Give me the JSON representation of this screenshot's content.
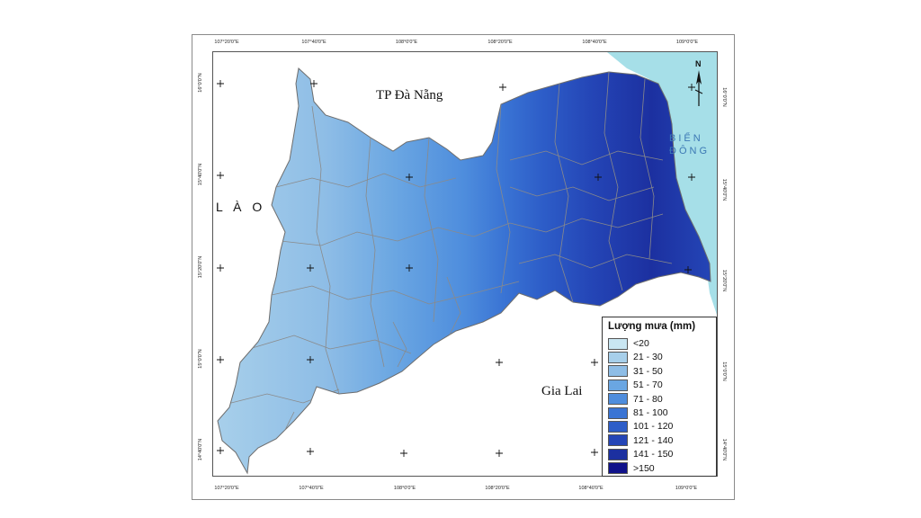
{
  "map": {
    "top_ticks": [
      "107°20'0\"E",
      "107°40'0\"E",
      "108°0'0\"E",
      "108°20'0\"E",
      "108°40'0\"E",
      "109°0'0\"E"
    ],
    "bottom_ticks": [
      "107°20'0\"E",
      "107°40'0\"E",
      "108°0'0\"E",
      "108°20'0\"E",
      "108°40'0\"E",
      "109°0'0\"E"
    ],
    "left_ticks": [
      "16°0'0\"N",
      "15°40'0\"N",
      "15°20'0\"N",
      "15°0'0\"N",
      "14°40'0\"N"
    ],
    "right_ticks": [
      "16°0'0\"N",
      "15°40'0\"N",
      "15°20'0\"N",
      "15°0'0\"N",
      "14°40'0\"N"
    ],
    "place_labels": {
      "da_nang": "TP Đà Nẵng",
      "gia_lai": "Gia Lai",
      "lao": "L À O",
      "bien_dong_1": "BIỂN",
      "bien_dong_2": "ĐÔNG"
    },
    "north_label": "N"
  },
  "legend": {
    "title": "Lượng mưa (mm)",
    "items": [
      {
        "label": "<20",
        "color": "#c9e6f2"
      },
      {
        "label": "21 - 30",
        "color": "#a7cfea"
      },
      {
        "label": "31 - 50",
        "color": "#8ebde6"
      },
      {
        "label": "51 - 70",
        "color": "#6aa6e2"
      },
      {
        "label": "71 - 80",
        "color": "#4e8ddd"
      },
      {
        "label": "81 - 100",
        "color": "#3a74d4"
      },
      {
        "label": "101 - 120",
        "color": "#2d5dc8"
      },
      {
        "label": "121 - 140",
        "color": "#2445b6"
      },
      {
        "label": "141 - 150",
        "color": "#1c30a0"
      },
      {
        "label": ">150",
        "color": "#10128a"
      }
    ]
  },
  "colors": {
    "sea": "#a6dfe8",
    "boundary": "#8a8a8a"
  }
}
